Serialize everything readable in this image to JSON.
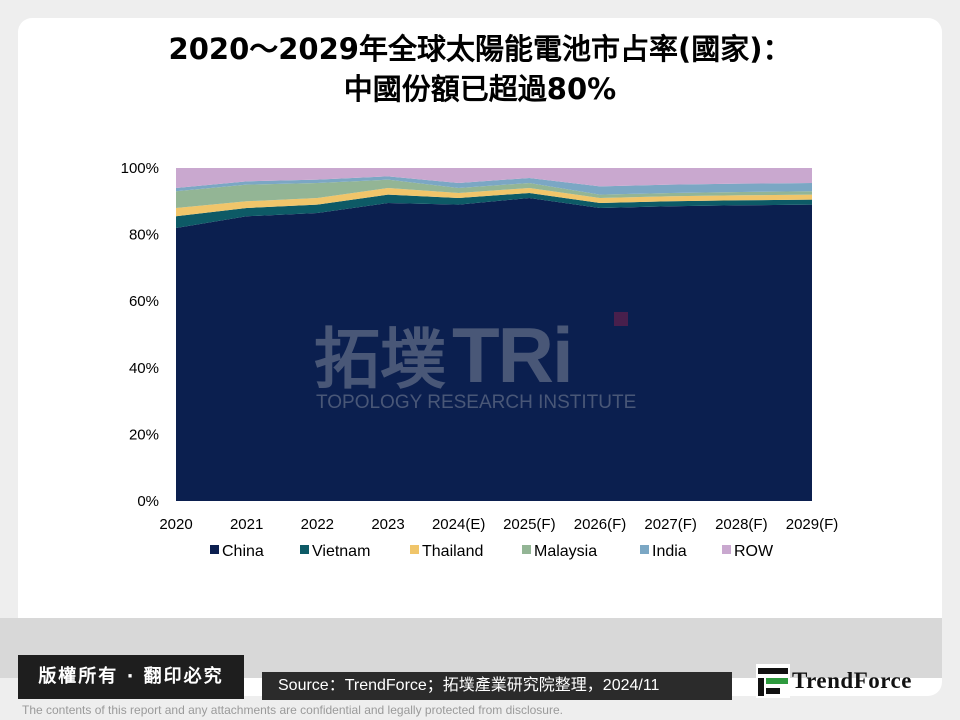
{
  "title_line1": "2020～2029年全球太陽能電池市占率(國家)：",
  "title_line2": "中國份額已超過80%",
  "watermark": {
    "chinese": "拓墣",
    "brand": "TRi",
    "subtitle": "TOPOLOGY RESEARCH INSTITUTE"
  },
  "copyright": "版權所有 · 翻印必究",
  "source": "Source：TrendForce；拓墣產業研究院整理，2024/11",
  "logo_text": "TrendForce",
  "footer_note": "The contents of this report and any attachments are confidential and legally protected from disclosure.",
  "colors": {
    "China": "#0b1f4f",
    "Vietnam": "#0d5a66",
    "Thailand": "#f0c56a",
    "Malaysia": "#93b595",
    "India": "#7ba7c4",
    "ROW": "#c9a8cf"
  },
  "chart_data": {
    "type": "area",
    "stacked": true,
    "categories": [
      "2020",
      "2021",
      "2022",
      "2023",
      "2024(E)",
      "2025(F)",
      "2026(F)",
      "2027(F)",
      "2028(F)",
      "2029(F)"
    ],
    "y_ticks": [
      "0%",
      "20%",
      "40%",
      "60%",
      "80%",
      "100%"
    ],
    "ylim": [
      0,
      100
    ],
    "grid": false,
    "legend_position": "bottom",
    "series": [
      {
        "name": "China",
        "values": [
          82,
          85.5,
          86.5,
          89.5,
          89,
          91,
          88,
          88.5,
          88.8,
          89
        ]
      },
      {
        "name": "Vietnam",
        "values": [
          3.5,
          2.5,
          2.5,
          2.5,
          2,
          1.5,
          1.5,
          1.5,
          1.5,
          1.5
        ]
      },
      {
        "name": "Thailand",
        "values": [
          2.5,
          2,
          2,
          2,
          1.5,
          1.5,
          1.5,
          1.5,
          1.5,
          1.5
        ]
      },
      {
        "name": "Malaysia",
        "values": [
          5,
          5,
          4.5,
          2.5,
          1.5,
          1.5,
          1,
          1,
          1,
          1
        ]
      },
      {
        "name": "India",
        "values": [
          1,
          1,
          1,
          1,
          1.5,
          1.5,
          2.5,
          2.5,
          2.5,
          2.5
        ]
      },
      {
        "name": "ROW",
        "values": [
          6,
          4,
          3.5,
          2.5,
          4.5,
          3,
          5.5,
          5,
          4.7,
          4.5
        ]
      }
    ]
  }
}
